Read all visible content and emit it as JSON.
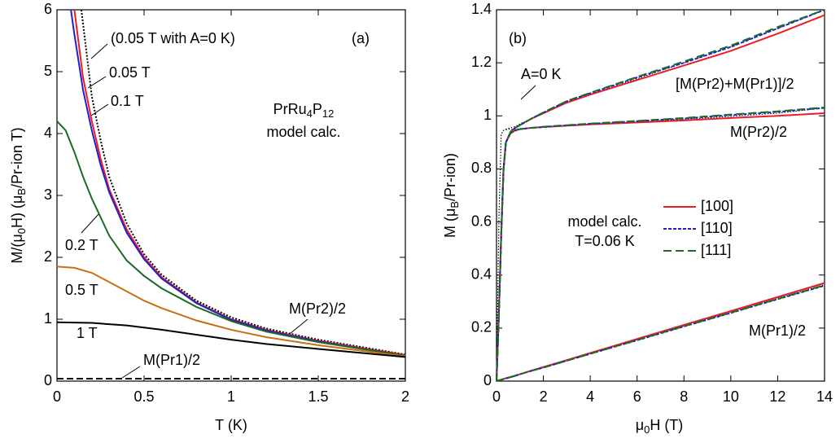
{
  "chart_data": [
    {
      "type": "line",
      "xlabel": [
        {
          "text": "T (K)"
        }
      ],
      "ylabel": [
        {
          "text": "M/(μ"
        },
        {
          "text": "0",
          "sub": true
        },
        {
          "text": "H)  (μ"
        },
        {
          "text": "B",
          "sub": true
        },
        {
          "text": "/Pr-ion T)"
        }
      ],
      "xlim": [
        0,
        2
      ],
      "ylim": [
        0,
        6
      ],
      "xticks": [
        0,
        0.5,
        1,
        1.5,
        2
      ],
      "yticks": [
        0,
        1,
        2,
        3,
        4,
        5,
        6
      ],
      "annotations": [
        [
          {
            "text": "(a)"
          }
        ],
        [
          {
            "text": "PrRu"
          },
          {
            "text": "4",
            "sub": true
          },
          {
            "text": "P"
          },
          {
            "text": "12",
            "sub": true
          }
        ],
        [
          {
            "text": "model calc."
          }
        ],
        [
          {
            "text": "M(Pr2)/2"
          }
        ]
      ],
      "series": [
        {
          "name": "(0.05 T with A=0 K)",
          "color": "#000000",
          "dash": "2,2",
          "x": [
            0.14,
            0.2,
            0.25,
            0.3,
            0.4,
            0.5,
            0.6,
            0.8,
            1.0,
            1.2,
            1.5,
            2.0
          ],
          "values": [
            6,
            4.6,
            3.9,
            3.3,
            2.55,
            2.05,
            1.72,
            1.3,
            1.03,
            0.85,
            0.67,
            0.43
          ]
        },
        {
          "name": "0.05 T",
          "color": "#ee1c25",
          "dash": "",
          "x": [
            0.1,
            0.15,
            0.2,
            0.25,
            0.3,
            0.4,
            0.5,
            0.6,
            0.8,
            1.0,
            1.2,
            1.5,
            2.0
          ],
          "values": [
            6,
            4.9,
            4.2,
            3.6,
            3.1,
            2.45,
            2.0,
            1.68,
            1.27,
            1.0,
            0.83,
            0.65,
            0.42
          ]
        },
        {
          "name": "0.1 T",
          "color": "#1f1fd0",
          "dash": "",
          "x": [
            0.08,
            0.1,
            0.15,
            0.2,
            0.25,
            0.3,
            0.4,
            0.5,
            0.6,
            0.8,
            1.0,
            1.2,
            1.5,
            2.0
          ],
          "values": [
            6,
            5.6,
            4.7,
            4.05,
            3.5,
            3.05,
            2.4,
            1.97,
            1.66,
            1.26,
            0.99,
            0.82,
            0.64,
            0.41
          ]
        },
        {
          "name": "0.2 T",
          "color": "#1a6b24",
          "dash": "",
          "x": [
            0,
            0.05,
            0.1,
            0.15,
            0.2,
            0.25,
            0.3,
            0.4,
            0.5,
            0.6,
            0.8,
            1.0,
            1.2,
            1.5,
            2.0
          ],
          "values": [
            4.2,
            4.05,
            3.7,
            3.3,
            2.95,
            2.65,
            2.35,
            1.95,
            1.7,
            1.5,
            1.2,
            0.97,
            0.8,
            0.63,
            0.41
          ]
        },
        {
          "name": "0.5 T",
          "color": "#c87010",
          "dash": "",
          "x": [
            0,
            0.1,
            0.2,
            0.3,
            0.4,
            0.5,
            0.6,
            0.8,
            1.0,
            1.2,
            1.5,
            2.0
          ],
          "values": [
            1.85,
            1.83,
            1.75,
            1.6,
            1.45,
            1.3,
            1.18,
            0.98,
            0.83,
            0.71,
            0.58,
            0.4
          ]
        },
        {
          "name": "1 T",
          "color": "#000000",
          "dash": "",
          "x": [
            0,
            0.2,
            0.4,
            0.6,
            0.8,
            1.0,
            1.2,
            1.5,
            2.0
          ],
          "values": [
            0.95,
            0.94,
            0.9,
            0.83,
            0.75,
            0.67,
            0.6,
            0.52,
            0.39
          ]
        },
        {
          "name": "M(Pr1)/2",
          "color": "#000000",
          "dash": "8,4",
          "x": [
            0,
            2
          ],
          "values": [
            0.04,
            0.04
          ]
        }
      ]
    },
    {
      "type": "line",
      "xlabel": [
        {
          "text": "μ"
        },
        {
          "text": "0",
          "sub": true
        },
        {
          "text": "H (T)"
        }
      ],
      "ylabel": [
        {
          "text": "M (μ"
        },
        {
          "text": "B",
          "sub": true
        },
        {
          "text": "/Pr-ion)"
        }
      ],
      "xlim": [
        0,
        14
      ],
      "ylim": [
        0,
        1.4
      ],
      "xticks": [
        0,
        2,
        4,
        6,
        8,
        10,
        12,
        14
      ],
      "yticks": [
        0,
        0.2,
        0.4,
        0.6,
        0.8,
        1,
        1.2,
        1.4
      ],
      "annotations": [
        [
          {
            "text": "(b)"
          }
        ],
        [
          {
            "text": "A=0 K"
          }
        ],
        [
          {
            "text": "model calc."
          }
        ],
        [
          {
            "text": "T=0.06 K"
          }
        ]
      ],
      "components": [
        "[M(Pr2)+M(Pr1)]/2",
        "M(Pr2)/2",
        "M(Pr1)/2"
      ],
      "x": [
        0,
        0.1,
        0.2,
        0.3,
        0.4,
        0.6,
        0.8,
        1,
        1.5,
        2,
        3,
        4,
        6,
        8,
        10,
        12,
        14
      ],
      "series": [
        {
          "name": "A=0 K",
          "legend": false,
          "color": "#000000",
          "dash": "1.5,2",
          "width": 1,
          "values": [
            [
              0,
              0.6,
              0.93,
              0.945,
              0.95,
              0.955,
              0.96,
              0.97,
              0.99,
              1.01,
              1.05,
              1.08,
              1.14,
              1.2,
              1.26,
              1.33,
              1.4
            ],
            [
              0,
              0.6,
              0.93,
              0.945,
              0.948,
              0.95,
              0.95,
              0.952,
              0.955,
              0.958,
              0.963,
              0.968,
              0.977,
              0.987,
              0.998,
              1.01,
              1.03
            ],
            [
              0,
              0.003,
              0.005,
              0.008,
              0.011,
              0.016,
              0.021,
              0.026,
              0.039,
              0.052,
              0.078,
              0.104,
              0.156,
              0.208,
              0.26,
              0.312,
              0.364
            ]
          ]
        },
        {
          "name": "[100]",
          "legend": true,
          "color": "#ee1c25",
          "dash": "",
          "width": 2,
          "values": [
            [
              0,
              0.25,
              0.55,
              0.8,
              0.9,
              0.94,
              0.955,
              0.965,
              0.99,
              1.01,
              1.05,
              1.08,
              1.135,
              1.19,
              1.245,
              1.31,
              1.38
            ],
            [
              0,
              0.25,
              0.55,
              0.8,
              0.9,
              0.935,
              0.945,
              0.95,
              0.955,
              0.958,
              0.963,
              0.968,
              0.975,
              0.983,
              0.992,
              1.0,
              1.01
            ],
            [
              0,
              0.003,
              0.005,
              0.008,
              0.011,
              0.016,
              0.021,
              0.026,
              0.04,
              0.053,
              0.079,
              0.106,
              0.159,
              0.212,
              0.264,
              0.317,
              0.37
            ]
          ]
        },
        {
          "name": "[110]",
          "legend": true,
          "color": "#1f1fd0",
          "dash": "4,2",
          "width": 2,
          "values": [
            [
              0,
              0.25,
              0.55,
              0.8,
              0.9,
              0.94,
              0.955,
              0.965,
              0.99,
              1.012,
              1.055,
              1.085,
              1.145,
              1.2,
              1.26,
              1.33,
              1.4
            ],
            [
              0,
              0.25,
              0.55,
              0.8,
              0.9,
              0.935,
              0.945,
              0.95,
              0.955,
              0.958,
              0.964,
              0.97,
              0.98,
              0.99,
              1.003,
              1.015,
              1.03
            ],
            [
              0,
              0.003,
              0.005,
              0.008,
              0.01,
              0.015,
              0.02,
              0.026,
              0.039,
              0.051,
              0.077,
              0.103,
              0.154,
              0.206,
              0.257,
              0.309,
              0.36
            ]
          ]
        },
        {
          "name": "[111]",
          "legend": true,
          "color": "#1a6b24",
          "dash": "10,5",
          "width": 2,
          "values": [
            [
              0,
              0.25,
              0.55,
              0.8,
              0.9,
              0.94,
              0.955,
              0.965,
              0.99,
              1.013,
              1.056,
              1.087,
              1.147,
              1.205,
              1.265,
              1.335,
              1.4
            ],
            [
              0,
              0.25,
              0.55,
              0.8,
              0.9,
              0.935,
              0.945,
              0.95,
              0.955,
              0.959,
              0.965,
              0.971,
              0.981,
              0.992,
              1.005,
              1.017,
              1.032
            ],
            [
              0,
              0.003,
              0.005,
              0.008,
              0.01,
              0.015,
              0.02,
              0.026,
              0.039,
              0.051,
              0.077,
              0.103,
              0.155,
              0.207,
              0.258,
              0.31,
              0.362
            ]
          ]
        }
      ]
    }
  ]
}
